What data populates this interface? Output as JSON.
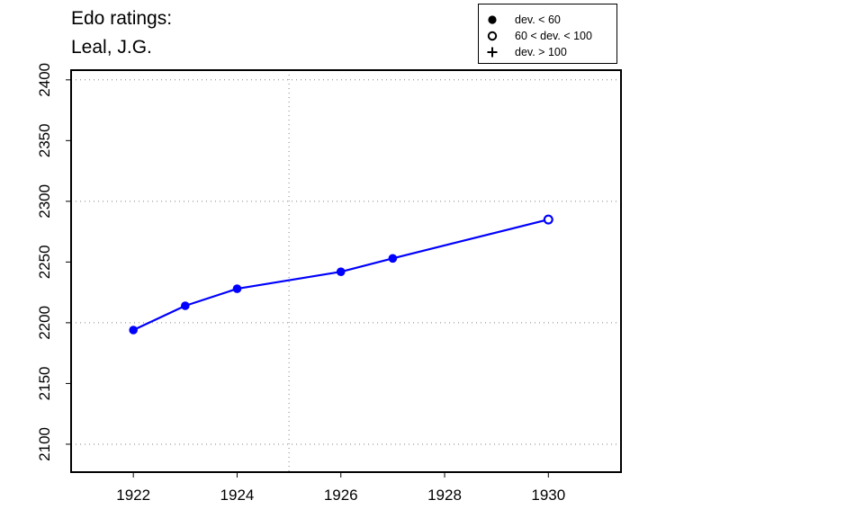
{
  "title_line1": "Edo ratings:",
  "title_line2": "Leal, J.G.",
  "legend": [
    {
      "symbol": "filled-circle",
      "label": "dev. < 60"
    },
    {
      "symbol": "open-circle",
      "label": "60 < dev. < 100"
    },
    {
      "symbol": "plus",
      "label": "dev. > 100"
    }
  ],
  "colors": {
    "series": "#0000ff",
    "axis": "#000000",
    "grid": "#808080"
  },
  "chart_data": {
    "type": "line",
    "title": "Edo ratings: Leal, J.G.",
    "xlabel": "",
    "ylabel": "",
    "xlim": [
      1920.8,
      1931.4
    ],
    "ylim": [
      2077,
      2408
    ],
    "x_ticks": [
      1922,
      1924,
      1926,
      1928,
      1930
    ],
    "x_tick_labels": [
      "1922",
      "1924",
      "1926",
      "1928",
      "1930"
    ],
    "y_ticks": [
      2100,
      2150,
      2200,
      2250,
      2300,
      2350,
      2400
    ],
    "y_tick_labels": [
      "2100",
      "2150",
      "2200",
      "2250",
      "2300",
      "2350",
      "2400"
    ],
    "x_grid": [
      1925
    ],
    "y_grid": [
      2100,
      2200,
      2300,
      2400
    ],
    "grid": "dotted",
    "legend_position": "top-right",
    "series": [
      {
        "x": [
          1922,
          1923,
          1924,
          1926,
          1927,
          1930
        ],
        "y": [
          2194,
          2214,
          2228,
          2242,
          2253,
          2285
        ],
        "markers": [
          "filled",
          "filled",
          "filled",
          "filled",
          "filled",
          "open"
        ]
      }
    ]
  }
}
